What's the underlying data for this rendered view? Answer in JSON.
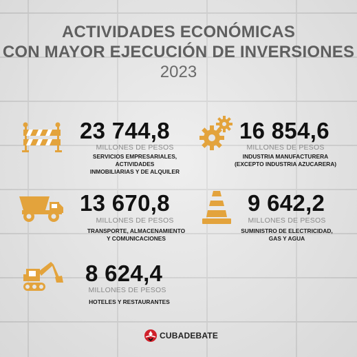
{
  "title": {
    "line1": "ACTIVIDADES ECONÓMICAS",
    "line2": "CON MAYOR EJECUCIÓN DE INVERSIONES",
    "year": "2023"
  },
  "colors": {
    "accent": "#e3a33c",
    "text": "#111111",
    "title": "#5f5f5f",
    "brand_red": "#d0202a"
  },
  "items": [
    {
      "value": "23 744,8",
      "unit": "MILLONES DE PESOS",
      "desc_line1": "SERVICIOS EMPRESARIALES, ACTIVIDADES",
      "desc_line2": "INMOBILIARIAS Y DE ALQUILER",
      "icon": "road-barrier-icon"
    },
    {
      "value": "16 854,6",
      "unit": "MILLONES DE PESOS",
      "desc_line1": "INDUSTRIA MANUFACTURERA",
      "desc_line2": "(EXCEPTO INDUSTRIA AZUCARERA)",
      "icon": "gears-icon"
    },
    {
      "value": "13 670,8",
      "unit": "MILLONES DE PESOS",
      "desc_line1": "TRANSPORTE, ALMACENAMIENTO",
      "desc_line2": "Y COMUNICACIONES",
      "icon": "dump-truck-icon"
    },
    {
      "value": "9 642,2",
      "unit": "MILLONES DE PESOS",
      "desc_line1": "SUMINISTRO DE ELECTRICIDAD,",
      "desc_line2": "GAS Y AGUA",
      "icon": "traffic-cone-icon"
    },
    {
      "value": "8 624,4",
      "unit": "MILLONES DE PESOS",
      "desc_line1": "HOTELES Y RESTAURANTES",
      "desc_line2": "",
      "icon": "excavator-icon"
    }
  ],
  "brand": {
    "name": "CUBADEBATE",
    "icon": "cubadebate-logo-icon"
  }
}
